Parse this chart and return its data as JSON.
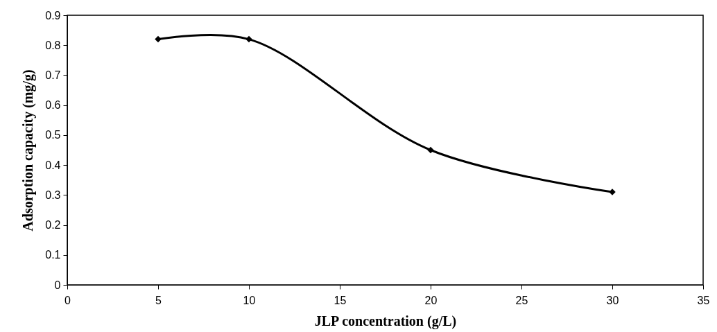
{
  "chart_data": {
    "type": "line",
    "xlabel": "JLP concentration (g/L)",
    "ylabel": "Adsorption capacity (mg/g)",
    "x": [
      5,
      10,
      20,
      30
    ],
    "series": [
      {
        "color": "#000000",
        "values": [
          0.82,
          0.82,
          0.45,
          0.31
        ]
      }
    ],
    "xlim": [
      0,
      35
    ],
    "xticks": [
      0,
      5,
      10,
      15,
      20,
      25,
      30,
      35
    ],
    "ylim": [
      0,
      0.9
    ],
    "yticks": [
      0,
      0.1,
      0.2,
      0.3,
      0.4,
      0.5,
      0.6,
      0.7,
      0.8,
      0.9
    ],
    "grid": false,
    "marker": "diamond",
    "line_style": "solid"
  }
}
